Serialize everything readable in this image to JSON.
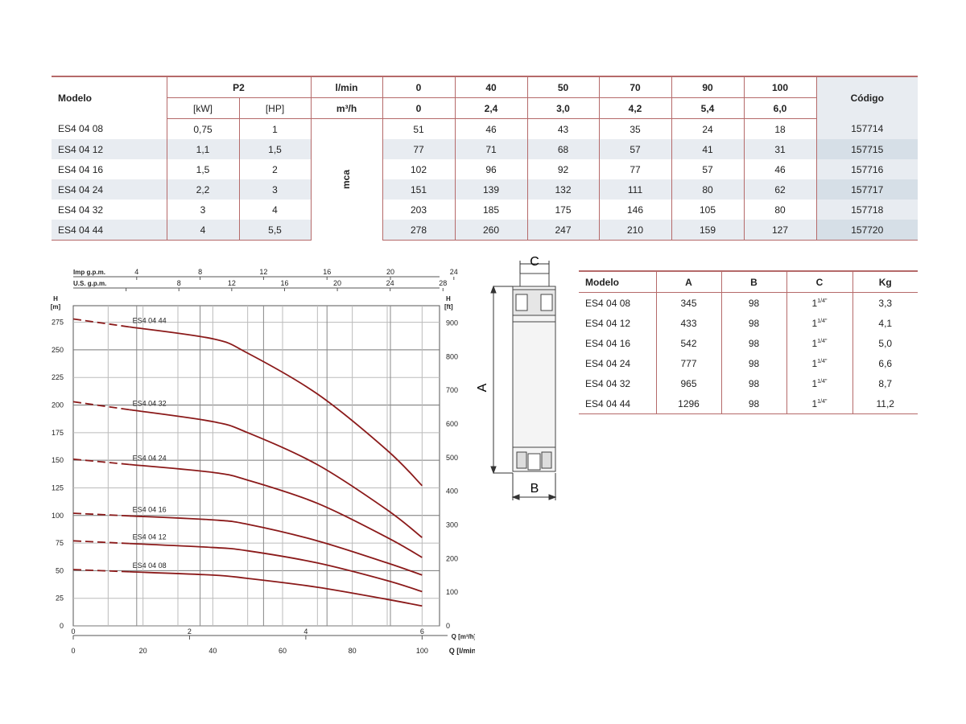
{
  "performance_table": {
    "headers": {
      "modelo": "Modelo",
      "p2": "P2",
      "kw": "[kW]",
      "hp": "[HP]",
      "lmin_label": "l/min",
      "m3h_label": "m³/h",
      "codigo": "Código",
      "mca": "mca",
      "flow_lmin": [
        "0",
        "40",
        "50",
        "70",
        "90",
        "100"
      ],
      "flow_m3h": [
        "0",
        "2,4",
        "3,0",
        "4,2",
        "5,4",
        "6,0"
      ]
    },
    "rows": [
      {
        "model": "ES4 04 08",
        "kw": "0,75",
        "hp": "1",
        "heads": [
          "51",
          "46",
          "43",
          "35",
          "24",
          "18"
        ],
        "code": "157714"
      },
      {
        "model": "ES4 04 12",
        "kw": "1,1",
        "hp": "1,5",
        "heads": [
          "77",
          "71",
          "68",
          "57",
          "41",
          "31"
        ],
        "code": "157715"
      },
      {
        "model": "ES4 04 16",
        "kw": "1,5",
        "hp": "2",
        "heads": [
          "102",
          "96",
          "92",
          "77",
          "57",
          "46"
        ],
        "code": "157716"
      },
      {
        "model": "ES4 04 24",
        "kw": "2,2",
        "hp": "3",
        "heads": [
          "151",
          "139",
          "132",
          "111",
          "80",
          "62"
        ],
        "code": "157717"
      },
      {
        "model": "ES4 04 32",
        "kw": "3",
        "hp": "4",
        "heads": [
          "203",
          "185",
          "175",
          "146",
          "105",
          "80"
        ],
        "code": "157718"
      },
      {
        "model": "ES4 04 44",
        "kw": "4",
        "hp": "5,5",
        "heads": [
          "278",
          "260",
          "247",
          "210",
          "159",
          "127"
        ],
        "code": "157720"
      }
    ]
  },
  "dimensions_table": {
    "headers": [
      "Modelo",
      "A",
      "B",
      "C",
      "Kg"
    ],
    "c_value": "1",
    "c_sup": "1/4\"",
    "rows": [
      {
        "model": "ES4 04 08",
        "a": "345",
        "b": "98",
        "kg": "3,3"
      },
      {
        "model": "ES4 04 12",
        "a": "433",
        "b": "98",
        "kg": "4,1"
      },
      {
        "model": "ES4 04 16",
        "a": "542",
        "b": "98",
        "kg": "5,0"
      },
      {
        "model": "ES4 04 24",
        "a": "777",
        "b": "98",
        "kg": "6,6"
      },
      {
        "model": "ES4 04 32",
        "a": "965",
        "b": "98",
        "kg": "8,7"
      },
      {
        "model": "ES4 04 44",
        "a": "1296",
        "b": "98",
        "kg": "11,2"
      }
    ]
  },
  "pump_drawing": {
    "label_a": "A",
    "label_b": "B",
    "label_c": "C"
  },
  "chart_data": {
    "type": "line",
    "curve_color": "#8b1a1a",
    "x_lmin_range": [
      0,
      105
    ],
    "y_m_range": [
      0,
      290
    ],
    "xlabel_lmin": "Q [l/min]",
    "xlabel_m3h": "Q [m³/h]",
    "ylabel_left": "H",
    "ylabel_left_unit": "[m]",
    "ylabel_right": "H",
    "ylabel_right_unit": "[ft]",
    "imp_label": "Imp g.p.m.",
    "us_label": "U.S. g.p.m.",
    "x_ticks_lmin": [
      0,
      20,
      40,
      60,
      80,
      100
    ],
    "x_ticks_m3h": [
      0,
      2,
      4,
      6
    ],
    "imp_ticks": [
      4,
      8,
      12,
      16,
      20,
      24
    ],
    "us_ticks": [
      4,
      8,
      12,
      16,
      20,
      24,
      28
    ],
    "y_ticks_m": [
      0,
      25,
      50,
      75,
      100,
      125,
      150,
      175,
      200,
      225,
      250,
      275
    ],
    "y_ticks_ft": [
      0,
      100,
      200,
      300,
      400,
      500,
      600,
      700,
      800,
      900
    ],
    "series": [
      {
        "name": "ES4 04 44",
        "x": [
          0,
          40,
          50,
          70,
          90,
          100
        ],
        "y": [
          278,
          260,
          247,
          210,
          159,
          127
        ]
      },
      {
        "name": "ES4 04 32",
        "x": [
          0,
          40,
          50,
          70,
          90,
          100
        ],
        "y": [
          203,
          185,
          175,
          146,
          105,
          80
        ]
      },
      {
        "name": "ES4 04 24",
        "x": [
          0,
          40,
          50,
          70,
          90,
          100
        ],
        "y": [
          151,
          139,
          132,
          111,
          80,
          62
        ]
      },
      {
        "name": "ES4 04 16",
        "x": [
          0,
          40,
          50,
          70,
          90,
          100
        ],
        "y": [
          102,
          96,
          92,
          77,
          57,
          46
        ]
      },
      {
        "name": "ES4 04 12",
        "x": [
          0,
          40,
          50,
          70,
          90,
          100
        ],
        "y": [
          77,
          71,
          68,
          57,
          41,
          31
        ]
      },
      {
        "name": "ES4 04 08",
        "x": [
          0,
          40,
          50,
          70,
          90,
          100
        ],
        "y": [
          51,
          46,
          43,
          35,
          24,
          18
        ]
      }
    ]
  }
}
